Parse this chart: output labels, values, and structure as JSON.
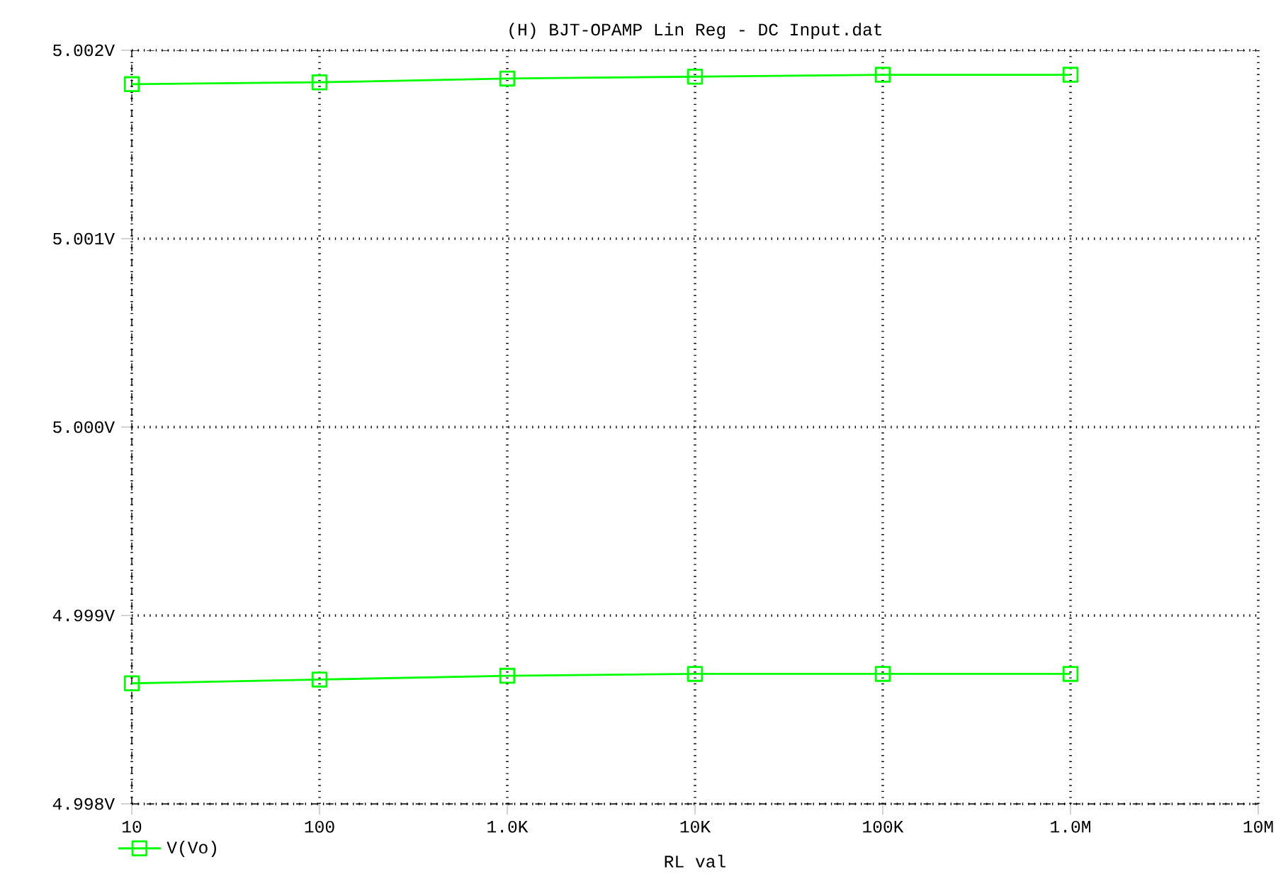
{
  "chart_data": {
    "type": "line",
    "title": "(H) BJT-OPAMP Lin Reg - DC Input.dat",
    "xlabel": "RL val",
    "log": "x",
    "grid": true,
    "marker": "square",
    "line_style": "solid",
    "legend": "bottom left",
    "xlim": [
      10,
      10000000
    ],
    "ylim": [
      4.998,
      5.002
    ],
    "xticks": [
      {
        "value": 10,
        "label": "10"
      },
      {
        "value": 100,
        "label": "100"
      },
      {
        "value": 1000,
        "label": "1.0K"
      },
      {
        "value": 10000,
        "label": "10K"
      },
      {
        "value": 100000,
        "label": "100K"
      },
      {
        "value": 1000000,
        "label": "1.0M"
      },
      {
        "value": 10000000,
        "label": "10M"
      }
    ],
    "yticks": [
      {
        "value": 4.998,
        "label": "4.998V"
      },
      {
        "value": 4.999,
        "label": "4.999V"
      },
      {
        "value": 5.0,
        "label": "5.000V"
      },
      {
        "value": 5.001,
        "label": "5.001V"
      },
      {
        "value": 5.002,
        "label": "5.002V"
      }
    ],
    "series": [
      {
        "name": "V(Vo)",
        "color": "#00ff00",
        "x": [
          10,
          100,
          1000,
          10000,
          100000,
          1000000
        ],
        "values": [
          5.00182,
          5.00183,
          5.00185,
          5.00186,
          5.00187,
          5.00187
        ]
      },
      {
        "color": "#00ff00",
        "x": [
          10,
          100,
          1000,
          10000,
          100000,
          1000000
        ],
        "values": [
          4.99864,
          4.99866,
          4.99868,
          4.99869,
          4.99869,
          4.99869
        ]
      }
    ]
  }
}
